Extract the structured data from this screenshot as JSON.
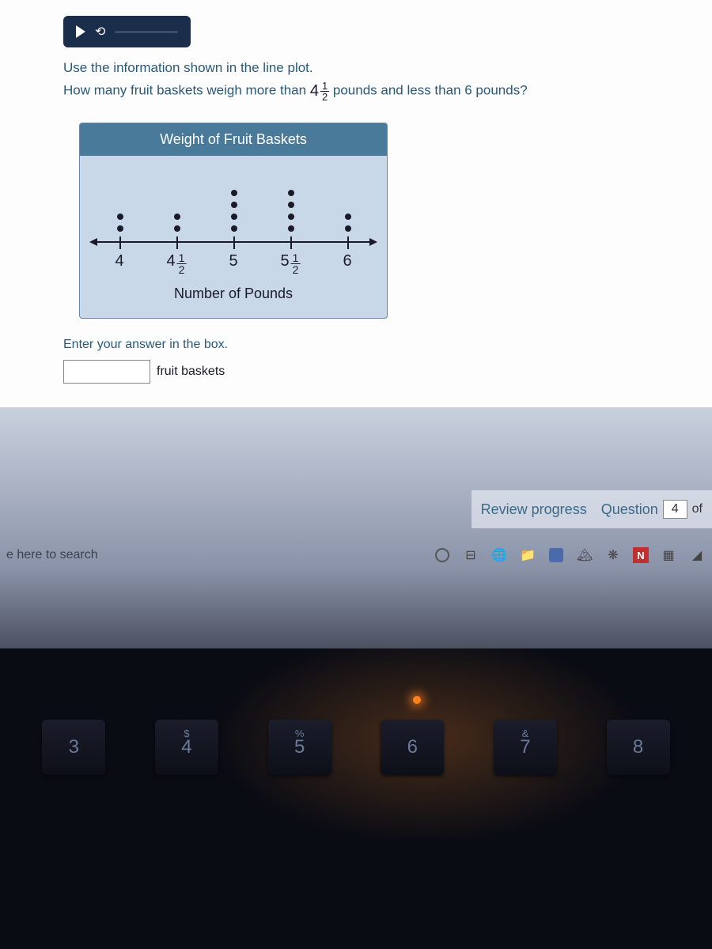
{
  "question": {
    "line1": "Use the information shown in the line plot.",
    "line2_before": "How many fruit baskets weigh more than ",
    "line2_whole": "4",
    "line2_num": "1",
    "line2_den": "2",
    "line2_after": " pounds and less than 6 pounds?"
  },
  "plot": {
    "title": "Weight of Fruit Baskets",
    "axis_title": "Number of Pounds",
    "dot_color": "#1a1a2a",
    "bg_color": "#c8d8e8",
    "header_color": "#4a7a9a",
    "ticks": [
      {
        "pos_pct": 10,
        "dots": 2,
        "label_whole": "4",
        "label_num": "",
        "label_den": ""
      },
      {
        "pos_pct": 30,
        "dots": 2,
        "label_whole": "4",
        "label_num": "1",
        "label_den": "2"
      },
      {
        "pos_pct": 50,
        "dots": 4,
        "label_whole": "5",
        "label_num": "",
        "label_den": ""
      },
      {
        "pos_pct": 70,
        "dots": 4,
        "label_whole": "5",
        "label_num": "1",
        "label_den": "2"
      },
      {
        "pos_pct": 90,
        "dots": 2,
        "label_whole": "6",
        "label_num": "",
        "label_den": ""
      }
    ]
  },
  "answer": {
    "prompt": "Enter your answer in the box.",
    "value": "",
    "unit": "fruit baskets"
  },
  "footer": {
    "review": "Review progress",
    "question_label": "Question",
    "question_num": "4",
    "of": "of"
  },
  "taskbar": {
    "search_hint": "e here to search",
    "n_label": "N"
  },
  "keyboard": {
    "keys": [
      "3",
      "4",
      "5",
      "6",
      "7",
      "8"
    ],
    "symbols": [
      "",
      "$",
      "%",
      "",
      "&",
      ""
    ]
  }
}
